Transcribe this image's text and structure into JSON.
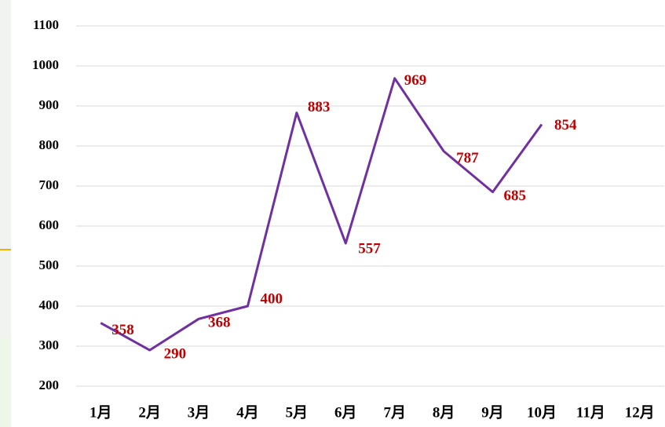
{
  "chart_data": {
    "type": "line",
    "categories": [
      "1月",
      "2月",
      "3月",
      "4月",
      "5月",
      "6月",
      "7月",
      "8月",
      "9月",
      "10月",
      "11月",
      "12月"
    ],
    "series": [
      {
        "color": "#7030a0",
        "values": [
          358,
          290,
          368,
          400,
          883,
          557,
          969,
          787,
          685,
          854,
          null,
          null
        ]
      }
    ],
    "ylim": [
      200,
      1100
    ],
    "yticks": [
      200,
      300,
      400,
      500,
      600,
      700,
      800,
      900,
      1000,
      1100
    ],
    "grid": true
  }
}
